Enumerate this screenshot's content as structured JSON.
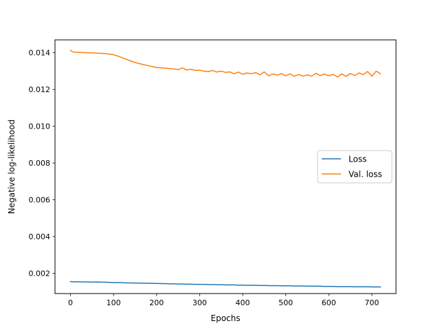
{
  "chart_data": {
    "type": "line",
    "title": "",
    "xlabel": "Epochs",
    "ylabel": "Negative log-likelihood",
    "xlim": [
      -36,
      756
    ],
    "ylim": [
      0.0009,
      0.0147
    ],
    "xticks": [
      0,
      100,
      200,
      300,
      400,
      500,
      600,
      700
    ],
    "xtick_labels": [
      "0",
      "100",
      "200",
      "300",
      "400",
      "500",
      "600",
      "700"
    ],
    "yticks": [
      0.002,
      0.004,
      0.006,
      0.008,
      0.01,
      0.012,
      0.014
    ],
    "ytick_labels": [
      "0.002",
      "0.004",
      "0.006",
      "0.008",
      "0.010",
      "0.012",
      "0.014"
    ],
    "grid": false,
    "legend_position": "center-right",
    "series": [
      {
        "name": "Loss",
        "color": "#1f77b4",
        "x": [
          0,
          10,
          20,
          30,
          40,
          50,
          60,
          70,
          80,
          90,
          100,
          110,
          120,
          130,
          140,
          150,
          160,
          170,
          180,
          190,
          200,
          210,
          220,
          230,
          240,
          250,
          260,
          270,
          280,
          290,
          300,
          310,
          320,
          330,
          340,
          350,
          360,
          370,
          380,
          390,
          400,
          410,
          420,
          430,
          440,
          450,
          460,
          470,
          480,
          490,
          500,
          510,
          520,
          530,
          540,
          550,
          560,
          570,
          580,
          590,
          600,
          610,
          620,
          630,
          640,
          650,
          660,
          670,
          680,
          690,
          700,
          710,
          720
        ],
        "y": [
          0.00155,
          0.00154,
          0.00154,
          0.00153,
          0.00153,
          0.00152,
          0.00153,
          0.00152,
          0.00152,
          0.00151,
          0.0015,
          0.0015,
          0.00149,
          0.00148,
          0.00148,
          0.00147,
          0.00147,
          0.00146,
          0.00146,
          0.00145,
          0.00145,
          0.00144,
          0.00144,
          0.00143,
          0.00143,
          0.00142,
          0.00142,
          0.00141,
          0.00141,
          0.0014,
          0.0014,
          0.0014,
          0.00139,
          0.00139,
          0.00138,
          0.00138,
          0.00137,
          0.00137,
          0.00137,
          0.00136,
          0.00136,
          0.00135,
          0.00135,
          0.00135,
          0.00134,
          0.00134,
          0.00133,
          0.00133,
          0.00133,
          0.00132,
          0.00132,
          0.00132,
          0.00131,
          0.00131,
          0.00131,
          0.0013,
          0.0013,
          0.0013,
          0.0013,
          0.00129,
          0.00129,
          0.00129,
          0.00128,
          0.00128,
          0.00128,
          0.00128,
          0.00127,
          0.00127,
          0.00127,
          0.00127,
          0.00126,
          0.00126,
          0.00126
        ]
      },
      {
        "name": "Val. loss",
        "color": "#ff7f0e",
        "x": [
          0,
          5,
          10,
          20,
          30,
          40,
          50,
          60,
          70,
          80,
          90,
          100,
          110,
          120,
          130,
          140,
          150,
          160,
          170,
          180,
          190,
          200,
          210,
          220,
          230,
          240,
          250,
          260,
          270,
          280,
          290,
          300,
          310,
          320,
          330,
          340,
          350,
          360,
          370,
          380,
          390,
          400,
          410,
          420,
          430,
          440,
          450,
          460,
          470,
          480,
          490,
          500,
          510,
          520,
          530,
          540,
          550,
          560,
          570,
          580,
          590,
          600,
          610,
          620,
          630,
          640,
          650,
          660,
          670,
          680,
          690,
          700,
          710,
          720
        ],
        "y": [
          0.01413,
          0.01405,
          0.01403,
          0.01402,
          0.01401,
          0.014,
          0.01399,
          0.01398,
          0.01397,
          0.01396,
          0.01393,
          0.01389,
          0.01382,
          0.01373,
          0.01364,
          0.01355,
          0.01347,
          0.01341,
          0.01335,
          0.0133,
          0.01325,
          0.0132,
          0.01318,
          0.01316,
          0.01314,
          0.01312,
          0.01308,
          0.01318,
          0.01306,
          0.0131,
          0.01304,
          0.01305,
          0.013,
          0.01297,
          0.01304,
          0.01295,
          0.013,
          0.01293,
          0.01296,
          0.01285,
          0.01295,
          0.01283,
          0.0129,
          0.01286,
          0.01292,
          0.0128,
          0.01296,
          0.01275,
          0.01285,
          0.01278,
          0.01286,
          0.01275,
          0.01285,
          0.01272,
          0.01282,
          0.01273,
          0.0128,
          0.01272,
          0.01288,
          0.01276,
          0.01284,
          0.01275,
          0.01282,
          0.01268,
          0.01285,
          0.01272,
          0.01287,
          0.01276,
          0.0129,
          0.01281,
          0.01298,
          0.01272,
          0.013,
          0.01286
        ]
      }
    ]
  }
}
